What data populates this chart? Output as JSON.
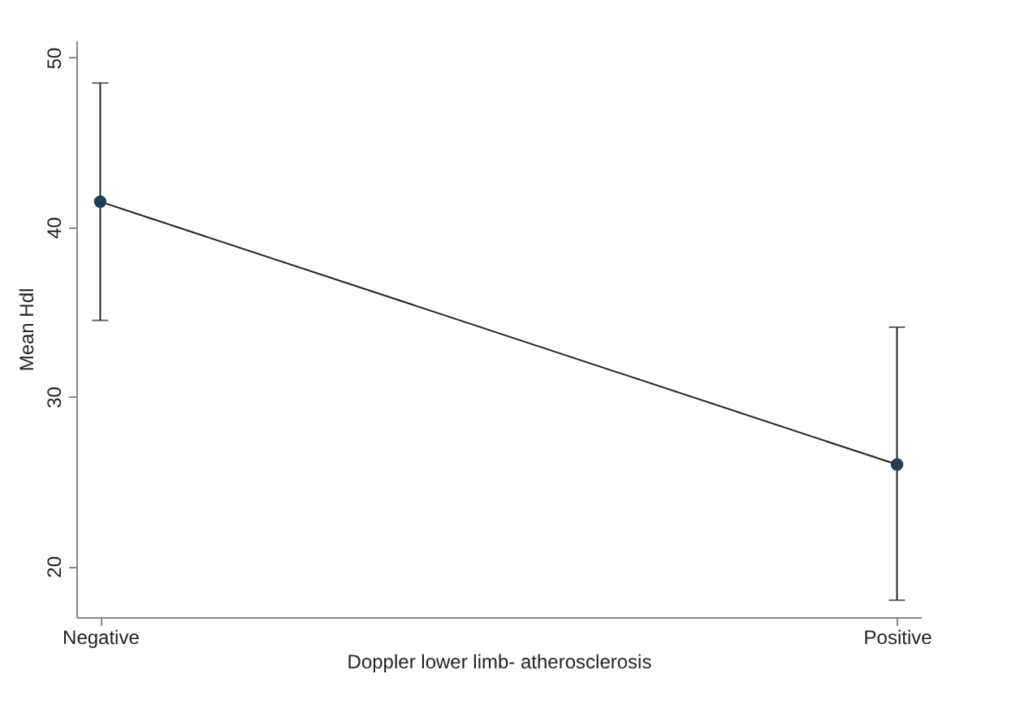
{
  "chart_data": {
    "type": "line",
    "xlabel": "Doppler lower limb- atherosclerosis",
    "ylabel": "Mean Hdl",
    "categories": [
      "Negative",
      "Positive"
    ],
    "series": [
      {
        "color": "#1f3d5c",
        "values": [
          41.5,
          26.0
        ],
        "errors": [
          [
            34.5,
            48.5
          ],
          [
            18.0,
            34.1
          ]
        ]
      }
    ],
    "ylim": [
      17,
      51
    ],
    "yticks": [
      20,
      30,
      40,
      50
    ],
    "grid": false,
    "legend": false,
    "marker": "circle",
    "line_style": "solid"
  }
}
